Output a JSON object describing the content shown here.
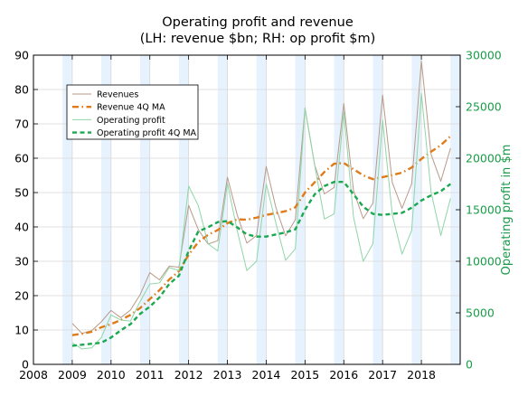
{
  "chart_data": {
    "type": "line",
    "title": "Operating profit and revenue",
    "subtitle": "(LH: revenue $bn; RH: op profit $m)",
    "xlabel": "",
    "ylabel": "",
    "ylabel_right": "Operating profit in $m",
    "xlim": [
      2008,
      2019
    ],
    "ylim": [
      0,
      90
    ],
    "ylim_right": [
      0,
      30000
    ],
    "x_ticks": [
      "2008",
      "2009",
      "2010",
      "2011",
      "2012",
      "2013",
      "2014",
      "2015",
      "2016",
      "2017",
      "2018"
    ],
    "y_ticks": [
      "0",
      "10",
      "20",
      "30",
      "40",
      "50",
      "60",
      "70",
      "80",
      "90"
    ],
    "y_ticks_right": [
      "0",
      "5000",
      "10000",
      "15000",
      "20000",
      "25000",
      "30000"
    ],
    "grid": true,
    "legend_position": "upper-left",
    "shaded_quarter": "Q4",
    "colors": {
      "revenue": "#b89a8a",
      "revenue_ma": "#e07b1a",
      "op_profit": "#8fd6a8",
      "op_profit_ma": "#1aa850",
      "shade": "#e6f2fd",
      "axis_right": "#1a9b4a"
    },
    "x": [
      "2009Q1",
      "2009Q2",
      "2009Q3",
      "2009Q4",
      "2010Q1",
      "2010Q2",
      "2010Q3",
      "2010Q4",
      "2011Q1",
      "2011Q2",
      "2011Q3",
      "2011Q4",
      "2012Q1",
      "2012Q2",
      "2012Q3",
      "2012Q4",
      "2013Q1",
      "2013Q2",
      "2013Q3",
      "2013Q4",
      "2014Q1",
      "2014Q2",
      "2014Q3",
      "2014Q4",
      "2015Q1",
      "2015Q2",
      "2015Q3",
      "2015Q4",
      "2016Q1",
      "2016Q2",
      "2016Q3",
      "2016Q4",
      "2017Q1",
      "2017Q2",
      "2017Q3",
      "2017Q4",
      "2018Q1",
      "2018Q2",
      "2018Q3",
      "2018Q4"
    ],
    "series": [
      {
        "name": "Revenues",
        "axis": "left",
        "style": "solid",
        "values": [
          11.9,
          9.0,
          9.8,
          12.4,
          15.7,
          13.6,
          15.8,
          20.3,
          26.7,
          24.6,
          28.6,
          28.3,
          46.3,
          39.2,
          35.0,
          36.0,
          54.5,
          43.6,
          35.3,
          37.5,
          57.6,
          45.6,
          37.4,
          42.1,
          74.6,
          58.0,
          49.6,
          51.5,
          75.9,
          50.6,
          42.4,
          46.9,
          78.4,
          52.9,
          45.4,
          52.6,
          88.3,
          61.1,
          53.3,
          62.9
        ]
      },
      {
        "name": "Revenue 4Q MA",
        "axis": "left",
        "style": "dashed",
        "values": [
          8.5,
          8.9,
          9.5,
          10.8,
          11.7,
          12.9,
          14.4,
          16.4,
          19.0,
          21.6,
          24.7,
          27.1,
          31.9,
          35.6,
          37.7,
          39.1,
          41.1,
          42.2,
          42.1,
          42.7,
          43.5,
          44.0,
          44.6,
          45.7,
          50.0,
          53.0,
          56.0,
          58.4,
          58.6,
          56.8,
          55.0,
          53.9,
          54.5,
          55.1,
          55.8,
          57.3,
          59.8,
          61.9,
          63.8,
          66.4
        ]
      },
      {
        "name": "Operating profit",
        "axis": "right",
        "style": "solid",
        "values": [
          2100,
          1500,
          1600,
          2600,
          4800,
          4300,
          4200,
          6100,
          7800,
          7900,
          9400,
          9100,
          17300,
          15400,
          11700,
          11000,
          17600,
          13000,
          9100,
          10000,
          17500,
          13700,
          10100,
          11200,
          24800,
          19300,
          14100,
          14600,
          24500,
          14300,
          10000,
          11700,
          23700,
          14500,
          10700,
          13000,
          26300,
          16700,
          12500,
          16100
        ]
      },
      {
        "name": "Operating profit 4Q MA",
        "axis": "right",
        "style": "dashed",
        "values": [
          1800,
          1900,
          2000,
          2100,
          2600,
          3300,
          3900,
          4900,
          5600,
          6500,
          7800,
          8600,
          11000,
          12900,
          13300,
          13800,
          13900,
          13300,
          12600,
          12400,
          12400,
          12600,
          12800,
          13100,
          15000,
          16500,
          17300,
          17700,
          17700,
          16500,
          15300,
          14600,
          14500,
          14600,
          14700,
          15200,
          15900,
          16400,
          16800,
          17500
        ]
      }
    ]
  }
}
